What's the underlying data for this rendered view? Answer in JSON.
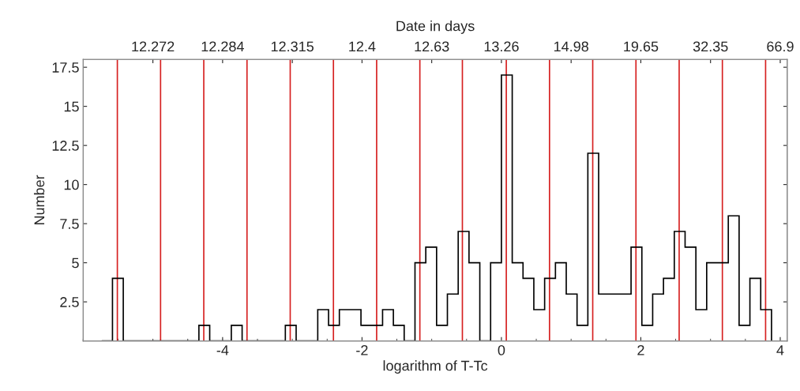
{
  "chart_data": {
    "type": "histogram",
    "xlabel": "logarithm of T-Tc",
    "ylabel": "Number",
    "x2label": "Date in days",
    "bins": [
      -5.735,
      -5.58,
      -5.425,
      -5.27,
      -5.115,
      -4.96,
      -4.805,
      -4.65,
      -4.495,
      -4.34,
      -4.185,
      -4.03,
      -3.875,
      -3.72,
      -3.565,
      -3.41,
      -3.255,
      -3.1,
      -2.945,
      -2.79,
      -2.635,
      -2.48,
      -2.325,
      -2.17,
      -2.015,
      -1.86,
      -1.705,
      -1.55,
      -1.395,
      -1.24,
      -1.085,
      -0.93,
      -0.775,
      -0.62,
      -0.465,
      -0.31,
      -0.155,
      0,
      0.155,
      0.31,
      0.465,
      0.62,
      0.775,
      0.93,
      1.085,
      1.24,
      1.395,
      1.55,
      1.705,
      1.86,
      2.015,
      2.17,
      2.325,
      2.48,
      2.635,
      2.79,
      2.945,
      3.1,
      3.255,
      3.41,
      3.565,
      3.72,
      3.875
    ],
    "values": [
      0,
      4,
      0,
      0,
      0,
      0,
      0,
      0,
      0,
      1,
      0,
      0,
      1,
      0,
      0,
      0,
      0,
      1,
      0,
      0,
      2,
      1,
      2,
      2,
      1,
      1,
      2,
      1,
      0,
      5,
      6,
      1,
      3,
      7,
      5,
      0,
      5,
      17,
      5,
      4,
      2,
      4,
      5,
      3,
      1,
      12,
      3,
      3,
      3,
      6,
      1,
      3,
      4,
      7,
      6,
      2,
      5,
      5,
      8,
      1,
      4,
      2
    ],
    "color": "#000000",
    "xlim": [
      -6,
      4.1
    ],
    "xticks": [
      -4,
      -2,
      0,
      2,
      4
    ],
    "ylim": [
      0,
      18
    ],
    "yticks": [
      2.5,
      5,
      7.5,
      10,
      12.5,
      15,
      17.5
    ],
    "annotations": [
      "12.272",
      "12.284",
      "12.315",
      "12.4",
      "12.63",
      "13.26",
      "14.98",
      "19.65",
      "32.35",
      "66.9"
    ],
    "ref_lines": [
      {
        "axis": "x",
        "value": -5.51,
        "color": "#d62020"
      },
      {
        "axis": "x",
        "value": -4.89,
        "color": "#d62020"
      },
      {
        "axis": "x",
        "value": -4.27,
        "color": "#d62020"
      },
      {
        "axis": "x",
        "value": -3.65,
        "color": "#d62020"
      },
      {
        "axis": "x",
        "value": -3.03,
        "color": "#d62020"
      },
      {
        "axis": "x",
        "value": -2.41,
        "color": "#d62020"
      },
      {
        "axis": "x",
        "value": -1.79,
        "color": "#d62020"
      },
      {
        "axis": "x",
        "value": -1.17,
        "color": "#d62020"
      },
      {
        "axis": "x",
        "value": -0.56,
        "color": "#d62020"
      },
      {
        "axis": "x",
        "value": 0.07,
        "color": "#d62020"
      },
      {
        "axis": "x",
        "value": 0.69,
        "color": "#d62020"
      },
      {
        "axis": "x",
        "value": 1.31,
        "color": "#d62020"
      },
      {
        "axis": "x",
        "value": 1.93,
        "color": "#d62020"
      },
      {
        "axis": "x",
        "value": 2.55,
        "color": "#d62020"
      },
      {
        "axis": "x",
        "value": 3.17,
        "color": "#d62020"
      },
      {
        "axis": "x",
        "value": 3.79,
        "color": "#d62020"
      }
    ]
  }
}
